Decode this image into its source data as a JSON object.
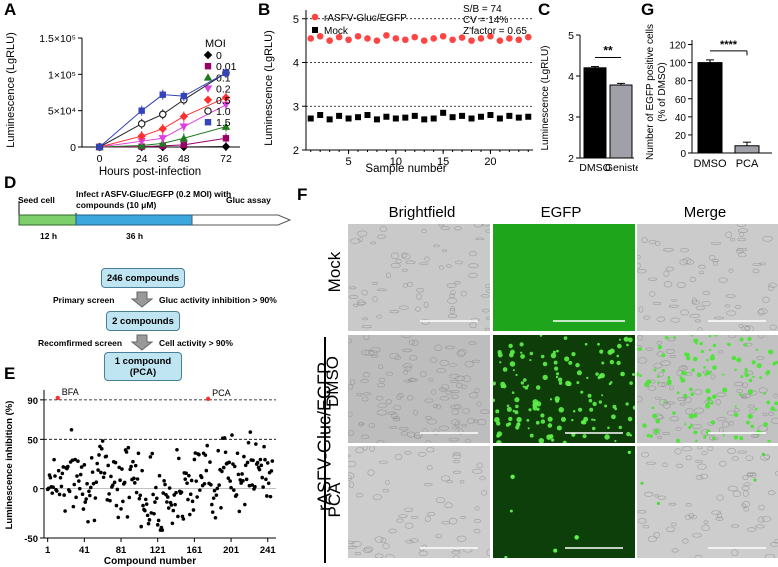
{
  "panels": {
    "a": "A",
    "b": "B",
    "c": "C",
    "d": "D",
    "e": "E",
    "f": "F",
    "g": "G"
  },
  "panel_a": {
    "chart_data": {
      "type": "line",
      "ylabel": "Luminescence (LgRLU)",
      "xlabel": "Hours post-infection",
      "x": [
        0,
        24,
        36,
        48,
        72
      ],
      "ylim": [
        0,
        150000
      ],
      "ytick_labels": [
        "0",
        "5×10⁴",
        "1×10⁵",
        "1.5×10⁵"
      ],
      "xtick_labels": [
        "0",
        "24",
        "36",
        "48",
        "72"
      ],
      "legend_title": "MOI",
      "series": [
        {
          "name": "0",
          "color": "#000000",
          "marker": "diamond",
          "values": [
            0,
            0,
            0,
            0,
            500
          ]
        },
        {
          "name": "0.01",
          "color": "#990066",
          "marker": "square",
          "values": [
            0,
            500,
            1500,
            3000,
            12000
          ]
        },
        {
          "name": "0.1",
          "color": "#1f7a1f",
          "marker": "triangle",
          "values": [
            0,
            2000,
            5000,
            12000,
            28000
          ]
        },
        {
          "name": "0.2",
          "color": "#e040e0",
          "marker": "triangle-down",
          "values": [
            0,
            8000,
            12000,
            28000,
            58000
          ]
        },
        {
          "name": "0.5",
          "color": "#ff3030",
          "marker": "diamond",
          "values": [
            0,
            15000,
            25000,
            42000,
            68000
          ]
        },
        {
          "name": "1.0",
          "color": "#222222",
          "marker": "circle-open",
          "values": [
            0,
            32000,
            45000,
            65000,
            102000
          ]
        },
        {
          "name": "1.5",
          "color": "#3344bb",
          "marker": "square",
          "values": [
            0,
            50000,
            72000,
            70000,
            102000
          ]
        }
      ]
    }
  },
  "panel_b": {
    "chart_data": {
      "type": "scatter",
      "ylabel": "Luminescence (LgRLU)",
      "xlabel": "Sample number",
      "ylim": [
        2,
        5.2
      ],
      "ytick_labels": [
        "2",
        "3",
        "4",
        "5"
      ],
      "xtick_labels": [
        "5",
        "10",
        "15",
        "20"
      ],
      "x": [
        1,
        2,
        3,
        4,
        5,
        6,
        7,
        8,
        9,
        10,
        11,
        12,
        13,
        14,
        15,
        16,
        17,
        18,
        19,
        20,
        21,
        22,
        23,
        24
      ],
      "series": [
        {
          "name": "rASFV-Gluc/EGFP",
          "color": "#ff4444",
          "values": [
            4.55,
            4.6,
            4.5,
            4.58,
            4.52,
            4.6,
            4.55,
            4.5,
            4.62,
            4.55,
            4.52,
            4.58,
            4.5,
            4.55,
            4.6,
            4.52,
            4.57,
            4.5,
            4.55,
            4.6,
            4.5,
            4.55,
            4.52,
            4.58
          ]
        },
        {
          "name": "Mock",
          "color": "#000000",
          "values": [
            2.72,
            2.8,
            2.7,
            2.78,
            2.72,
            2.75,
            2.8,
            2.7,
            2.76,
            2.72,
            2.74,
            2.78,
            2.7,
            2.72,
            2.85,
            2.75,
            2.78,
            2.72,
            2.76,
            2.8,
            2.72,
            2.78,
            2.74,
            2.76
          ]
        }
      ],
      "stats": [
        "S/B = 74",
        "CV = 14%",
        "Z'factor = 0.65"
      ]
    }
  },
  "panel_c": {
    "chart_data": {
      "type": "bar",
      "ylabel": "Luminescence (LgRLU)",
      "categories": [
        "DMSO",
        "Genistein"
      ],
      "values": [
        4.2,
        3.78
      ],
      "errors": [
        0.03,
        0.04
      ],
      "ylim": [
        2,
        5
      ],
      "ytick_labels": [
        "2",
        "3",
        "4",
        "5"
      ],
      "significance": "**"
    }
  },
  "panel_g": {
    "chart_data": {
      "type": "bar",
      "ylabel": "Number of EGFP positive cells (% of DMSO)",
      "ylabel_line1": "Number of EGFP positive cells",
      "ylabel_line2": "(% of DMSO)",
      "categories": [
        "DMSO",
        "PCA"
      ],
      "values": [
        100,
        8
      ],
      "errors": [
        3,
        4
      ],
      "ylim": [
        0,
        125
      ],
      "ytick_labels": [
        "0",
        "20",
        "40",
        "60",
        "80",
        "100",
        "120"
      ],
      "significance": "****"
    }
  },
  "panel_d": {
    "seed": "Seed cell",
    "infect": "Infect rASFV-Gluc/EGFP (0.2 MOI) with compounds (10 μM)",
    "gluc": "Gluc assay",
    "t1": "12 h",
    "t2": "36 h",
    "box1": "246 compounds",
    "screen1": "Primary screen",
    "crit1": "Gluc activity inhibition > 90%",
    "box2": "2 compounds",
    "screen2": "Recomfirmed screen",
    "crit2": "Cell activity > 90%",
    "box3_line1": "1 compound",
    "box3_line2": "(PCA)"
  },
  "panel_e": {
    "chart_data": {
      "type": "scatter",
      "ylabel": "Luminescence inhibition (%)",
      "xlabel": "Compound number",
      "ylim": [
        -50,
        100
      ],
      "ytick_labels": [
        "-50",
        "0",
        "50",
        "90"
      ],
      "xtick_labels": [
        "1",
        "41",
        "81",
        "121",
        "161",
        "201",
        "241"
      ],
      "annotations": [
        "BFA",
        "PCA"
      ],
      "hits": [
        {
          "name": "BFA",
          "x": 12,
          "y": 92
        },
        {
          "name": "PCA",
          "x": 176,
          "y": 91
        }
      ]
    }
  },
  "panel_f": {
    "columns": [
      "Brightfield",
      "EGFP",
      "Merge"
    ],
    "rows": [
      "Mock",
      "DMSO",
      "PCA"
    ],
    "group_label": "rASFV-Gluc/EGFP"
  }
}
